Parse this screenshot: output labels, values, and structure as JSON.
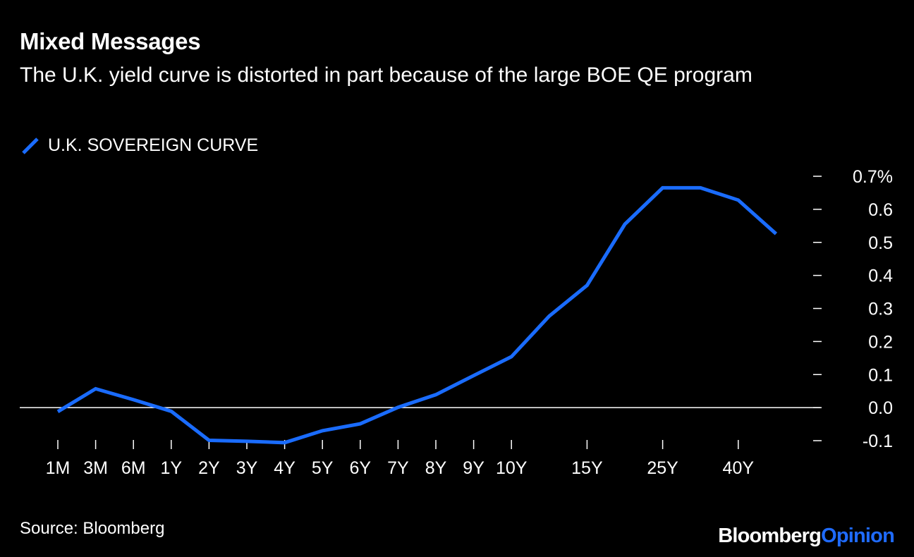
{
  "title": "Mixed Messages",
  "subtitle": "The U.K. yield curve is distorted in part because of the large BOE QE program",
  "source": "Source: Bloomberg",
  "brand": {
    "part1": "Bloomberg",
    "part2": "Opinion"
  },
  "colors": {
    "line": "#1a6cff",
    "background": "#000000",
    "text": "#ffffff",
    "zero_line": "#ffffff"
  },
  "chart_data": {
    "type": "line",
    "title": "Mixed Messages",
    "subtitle": "The U.K. yield curve is distorted in part because of the large BOE QE program",
    "legend_position": "top-left",
    "ylim": [
      -0.1,
      0.7
    ],
    "y_ticks": [
      "0.7%",
      "0.6",
      "0.5",
      "0.4",
      "0.3",
      "0.2",
      "0.1",
      "0.0",
      "-0.1"
    ],
    "y_tick_values": [
      0.7,
      0.6,
      0.5,
      0.4,
      0.3,
      0.2,
      0.1,
      0.0,
      -0.1
    ],
    "y_axis_side": "right",
    "x_tick_labels": [
      "1M",
      "3M",
      "6M",
      "1Y",
      "2Y",
      "3Y",
      "4Y",
      "5Y",
      "6Y",
      "7Y",
      "8Y",
      "9Y",
      "10Y",
      "15Y",
      "25Y",
      "40Y"
    ],
    "x_tick_index": [
      0,
      1,
      2,
      3,
      4,
      5,
      6,
      7,
      8,
      9,
      10,
      11,
      12,
      14,
      16,
      18
    ],
    "series": [
      {
        "name": "U.K. SOVEREIGN CURVE",
        "points": [
          {
            "i": 0,
            "y": -0.012
          },
          {
            "i": 1,
            "y": 0.057
          },
          {
            "i": 2,
            "y": 0.024
          },
          {
            "i": 3,
            "y": -0.011
          },
          {
            "i": 4,
            "y": -0.099
          },
          {
            "i": 5,
            "y": -0.102
          },
          {
            "i": 6,
            "y": -0.106
          },
          {
            "i": 7,
            "y": -0.07
          },
          {
            "i": 8,
            "y": -0.049
          },
          {
            "i": 9,
            "y": 0.001
          },
          {
            "i": 10,
            "y": 0.039
          },
          {
            "i": 11,
            "y": 0.097
          },
          {
            "i": 12,
            "y": 0.154
          },
          {
            "i": 13,
            "y": 0.277
          },
          {
            "i": 14,
            "y": 0.37
          },
          {
            "i": 15,
            "y": 0.555
          },
          {
            "i": 16,
            "y": 0.665
          },
          {
            "i": 17,
            "y": 0.665
          },
          {
            "i": 18,
            "y": 0.628
          },
          {
            "i": 19,
            "y": 0.526
          }
        ]
      }
    ]
  }
}
